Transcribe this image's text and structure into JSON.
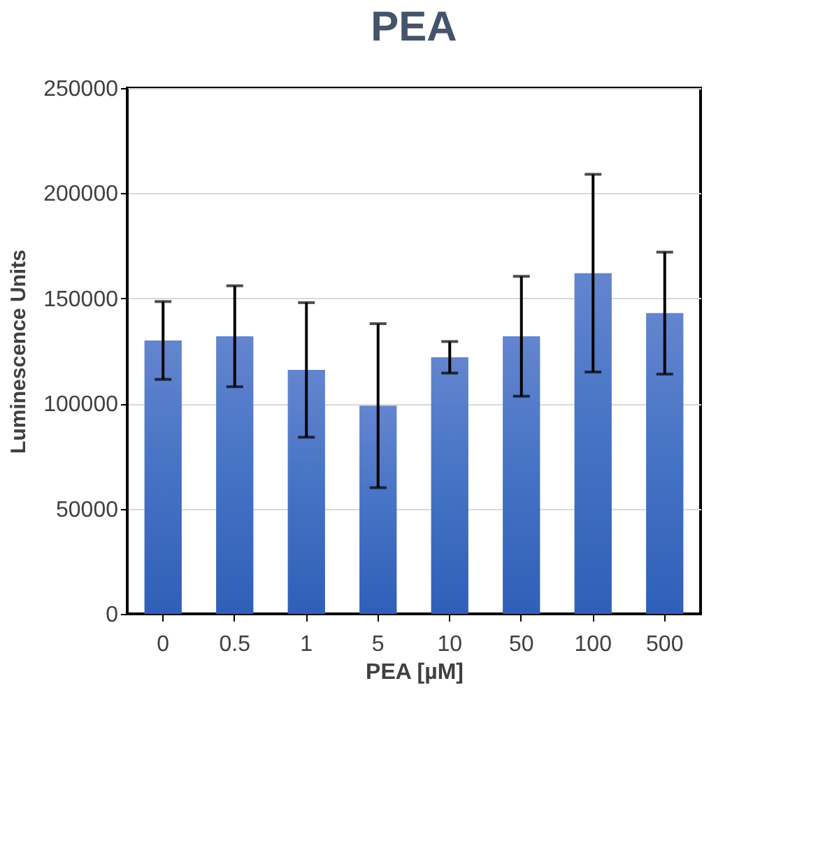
{
  "chart_data": {
    "type": "bar",
    "title": "PEA",
    "xlabel": "PEA [µM]",
    "ylabel": "Luminescence Units",
    "categories": [
      "0",
      "0.5",
      "1",
      "5",
      "10",
      "50",
      "100",
      "500"
    ],
    "values": [
      130000,
      132000,
      116000,
      99000,
      122000,
      132000,
      162000,
      143000
    ],
    "errors": [
      18500,
      24000,
      32000,
      39000,
      7500,
      28500,
      47000,
      29000
    ],
    "color": "#4472c4",
    "ylim": [
      0,
      250000
    ],
    "yticks": [
      0,
      50000,
      100000,
      150000,
      200000,
      250000
    ],
    "grid": "y"
  }
}
